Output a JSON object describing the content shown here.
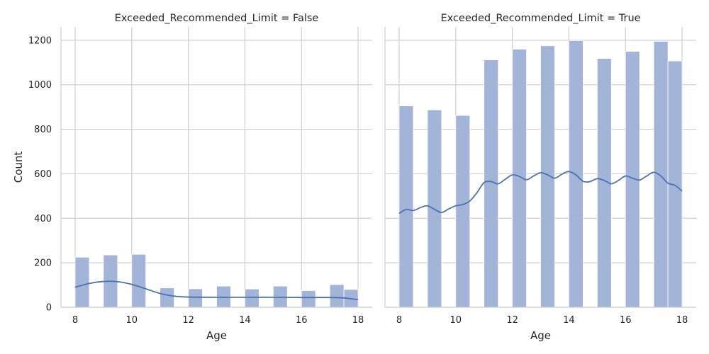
{
  "colors": {
    "bar": "#a2b4d8",
    "kde": "#4c72b0"
  },
  "chart_data": [
    {
      "type": "bar",
      "title": "Exceeded_Recommended_Limit = False",
      "xlabel": "Age",
      "ylabel": "Count",
      "xlim": [
        7.5,
        18.5
      ],
      "ylim": [
        0,
        1260
      ],
      "xticks": [
        8,
        10,
        12,
        14,
        16,
        18
      ],
      "yticks": [
        0,
        200,
        400,
        600,
        800,
        1000,
        1200
      ],
      "grid": true,
      "bins": [
        {
          "x0": 8.0,
          "x1": 8.5,
          "value": 225
        },
        {
          "x0": 9.0,
          "x1": 9.5,
          "value": 235
        },
        {
          "x0": 10.0,
          "x1": 10.5,
          "value": 238
        },
        {
          "x0": 11.0,
          "x1": 11.5,
          "value": 87
        },
        {
          "x0": 12.0,
          "x1": 12.5,
          "value": 83
        },
        {
          "x0": 13.0,
          "x1": 13.5,
          "value": 95
        },
        {
          "x0": 14.0,
          "x1": 14.5,
          "value": 82
        },
        {
          "x0": 15.0,
          "x1": 15.5,
          "value": 95
        },
        {
          "x0": 16.0,
          "x1": 16.5,
          "value": 75
        },
        {
          "x0": 17.0,
          "x1": 17.5,
          "value": 102
        },
        {
          "x0": 17.5,
          "x1": 18.0,
          "value": 80
        }
      ],
      "kde": {
        "x": [
          8.0,
          8.5,
          9.0,
          9.5,
          10.0,
          10.5,
          11.0,
          11.5,
          12.0,
          13.0,
          14.0,
          15.0,
          16.0,
          17.0,
          17.5,
          18.0
        ],
        "y": [
          90,
          107,
          116,
          115,
          103,
          83,
          62,
          50,
          46,
          45,
          45,
          45,
          44,
          44,
          42,
          34
        ]
      }
    },
    {
      "type": "bar",
      "title": "Exceeded_Recommended_Limit = True",
      "xlabel": "Age",
      "ylabel": "",
      "xlim": [
        7.5,
        18.5
      ],
      "ylim": [
        0,
        1260
      ],
      "xticks": [
        8,
        10,
        12,
        14,
        16,
        18
      ],
      "yticks": [
        0,
        200,
        400,
        600,
        800,
        1000,
        1200
      ],
      "grid": true,
      "bins": [
        {
          "x0": 8.0,
          "x1": 8.5,
          "value": 905
        },
        {
          "x0": 9.0,
          "x1": 9.5,
          "value": 887
        },
        {
          "x0": 10.0,
          "x1": 10.5,
          "value": 862
        },
        {
          "x0": 11.0,
          "x1": 11.5,
          "value": 1112
        },
        {
          "x0": 12.0,
          "x1": 12.5,
          "value": 1160
        },
        {
          "x0": 13.0,
          "x1": 13.5,
          "value": 1175
        },
        {
          "x0": 14.0,
          "x1": 14.5,
          "value": 1198
        },
        {
          "x0": 15.0,
          "x1": 15.5,
          "value": 1118
        },
        {
          "x0": 16.0,
          "x1": 16.5,
          "value": 1150
        },
        {
          "x0": 17.0,
          "x1": 17.5,
          "value": 1195
        },
        {
          "x0": 17.5,
          "x1": 18.0,
          "value": 1107
        }
      ],
      "kde": {
        "x": [
          8.0,
          8.25,
          8.5,
          8.75,
          9.0,
          9.25,
          9.5,
          9.75,
          10.0,
          10.25,
          10.5,
          10.75,
          11.0,
          11.25,
          11.5,
          11.75,
          12.0,
          12.25,
          12.5,
          12.75,
          13.0,
          13.25,
          13.5,
          13.75,
          14.0,
          14.25,
          14.5,
          14.75,
          15.0,
          15.25,
          15.5,
          15.75,
          16.0,
          16.25,
          16.5,
          16.75,
          17.0,
          17.25,
          17.5,
          17.75,
          18.0
        ],
        "y": [
          422,
          440,
          435,
          448,
          456,
          440,
          426,
          442,
          456,
          462,
          478,
          515,
          560,
          565,
          555,
          575,
          595,
          588,
          573,
          590,
          605,
          595,
          580,
          598,
          610,
          595,
          566,
          565,
          578,
          570,
          555,
          570,
          590,
          580,
          572,
          590,
          607,
          590,
          558,
          548,
          522
        ]
      }
    }
  ]
}
